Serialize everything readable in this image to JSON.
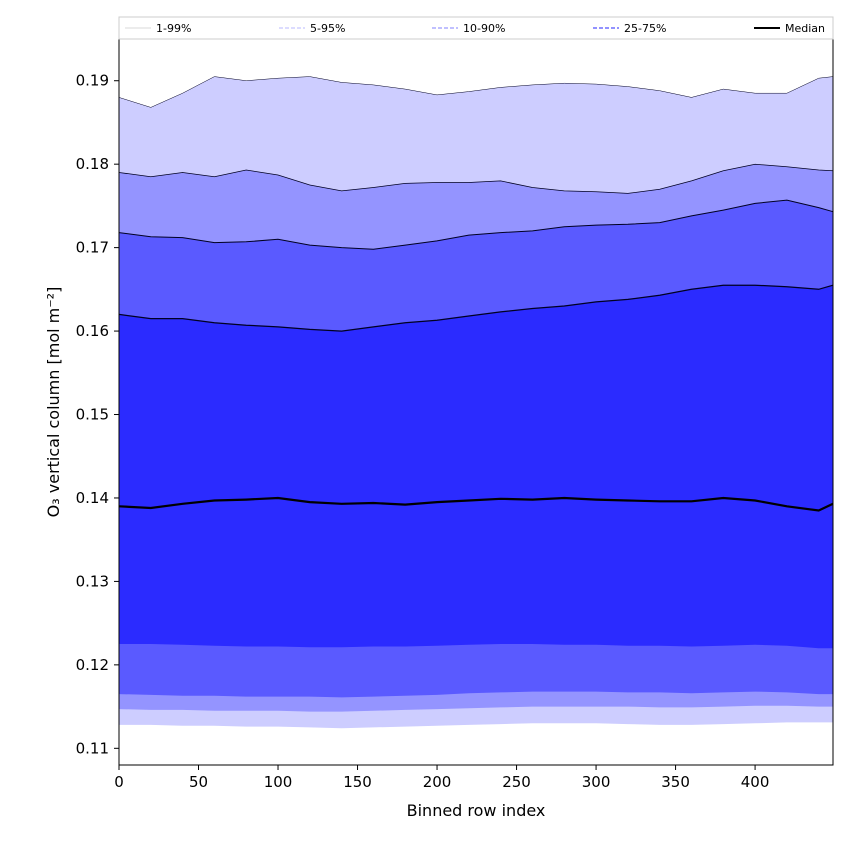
{
  "chart_data": {
    "type": "area",
    "xlabel": "Binned row index",
    "ylabel": "O₃ vertical column [mol m⁻²]",
    "xlim": [
      0,
      449
    ],
    "ylim": [
      0.108,
      0.195
    ],
    "xticks": [
      0,
      50,
      100,
      150,
      200,
      250,
      300,
      350,
      400
    ],
    "yticks": [
      0.11,
      0.12,
      0.13,
      0.14,
      0.15,
      0.16,
      0.17,
      0.18,
      0.19
    ],
    "x": [
      0,
      20,
      40,
      60,
      80,
      100,
      120,
      140,
      160,
      180,
      200,
      220,
      240,
      260,
      280,
      300,
      320,
      340,
      360,
      380,
      400,
      420,
      440,
      449
    ],
    "bands": [
      {
        "name": "1-99%",
        "color": "#cdcdff",
        "lower": [
          0.1128,
          0.1128,
          0.1127,
          0.1127,
          0.1126,
          0.1126,
          0.1125,
          0.1124,
          0.1125,
          0.1126,
          0.1127,
          0.1128,
          0.1129,
          0.113,
          0.113,
          0.113,
          0.1129,
          0.1128,
          0.1128,
          0.1129,
          0.113,
          0.1131,
          0.1131,
          0.1131
        ],
        "upper": [
          0.188,
          0.1868,
          0.1885,
          0.1905,
          0.19,
          0.1903,
          0.1905,
          0.1898,
          0.1895,
          0.189,
          0.1883,
          0.1887,
          0.1892,
          0.1895,
          0.1897,
          0.1896,
          0.1893,
          0.1888,
          0.188,
          0.189,
          0.1885,
          0.1885,
          0.1903,
          0.1905
        ]
      },
      {
        "name": "5-95%",
        "color": "#9494ff",
        "lower": [
          0.1147,
          0.1146,
          0.1146,
          0.1145,
          0.1145,
          0.1145,
          0.1144,
          0.1144,
          0.1145,
          0.1146,
          0.1147,
          0.1148,
          0.1149,
          0.115,
          0.115,
          0.115,
          0.115,
          0.1149,
          0.1149,
          0.115,
          0.1151,
          0.1151,
          0.115,
          0.115
        ],
        "upper": [
          0.179,
          0.1785,
          0.179,
          0.1785,
          0.1793,
          0.1787,
          0.1775,
          0.1768,
          0.1772,
          0.1777,
          0.1778,
          0.1778,
          0.178,
          0.1772,
          0.1768,
          0.1767,
          0.1765,
          0.177,
          0.178,
          0.1792,
          0.18,
          0.1797,
          0.1793,
          0.1792
        ]
      },
      {
        "name": "10-90%",
        "color": "#5a5aff",
        "lower": [
          0.1165,
          0.1164,
          0.1163,
          0.1163,
          0.1162,
          0.1162,
          0.1162,
          0.1161,
          0.1162,
          0.1163,
          0.1164,
          0.1166,
          0.1167,
          0.1168,
          0.1168,
          0.1168,
          0.1167,
          0.1167,
          0.1166,
          0.1167,
          0.1168,
          0.1167,
          0.1165,
          0.1165
        ],
        "upper": [
          0.1718,
          0.1713,
          0.1712,
          0.1706,
          0.1707,
          0.171,
          0.1703,
          0.17,
          0.1698,
          0.1703,
          0.1708,
          0.1715,
          0.1718,
          0.172,
          0.1725,
          0.1727,
          0.1728,
          0.173,
          0.1738,
          0.1745,
          0.1753,
          0.1757,
          0.1748,
          0.1743
        ]
      },
      {
        "name": "25-75%",
        "color": "#2b2bff",
        "lower": [
          0.1225,
          0.1225,
          0.1224,
          0.1223,
          0.1222,
          0.1222,
          0.1221,
          0.1221,
          0.1222,
          0.1222,
          0.1223,
          0.1224,
          0.1225,
          0.1225,
          0.1224,
          0.1224,
          0.1223,
          0.1223,
          0.1222,
          0.1223,
          0.1224,
          0.1223,
          0.122,
          0.122
        ],
        "upper": [
          0.162,
          0.1615,
          0.1615,
          0.161,
          0.1607,
          0.1605,
          0.1602,
          0.16,
          0.1605,
          0.161,
          0.1613,
          0.1618,
          0.1623,
          0.1627,
          0.163,
          0.1635,
          0.1638,
          0.1643,
          0.165,
          0.1655,
          0.1655,
          0.1653,
          0.165,
          0.1655
        ]
      }
    ],
    "median": {
      "name": "Median",
      "color": "#000000",
      "values": [
        0.139,
        0.1388,
        0.1393,
        0.1397,
        0.1398,
        0.14,
        0.1395,
        0.1393,
        0.1394,
        0.1392,
        0.1395,
        0.1397,
        0.1399,
        0.1398,
        0.14,
        0.1398,
        0.1397,
        0.1396,
        0.1396,
        0.14,
        0.1397,
        0.139,
        0.1385,
        0.1393
      ]
    },
    "legend": {
      "placement": "top",
      "entries": [
        {
          "label": "1-99%",
          "color": "#e0e0e0",
          "style": "solid"
        },
        {
          "label": "5-95%",
          "color": "#c8c8ff",
          "style": "dashed"
        },
        {
          "label": "10-90%",
          "color": "#9a9aff",
          "style": "dashed"
        },
        {
          "label": "25-75%",
          "color": "#5050ff",
          "style": "dashed"
        },
        {
          "label": "Median",
          "color": "#000000",
          "style": "solid"
        }
      ]
    },
    "grid": false
  }
}
